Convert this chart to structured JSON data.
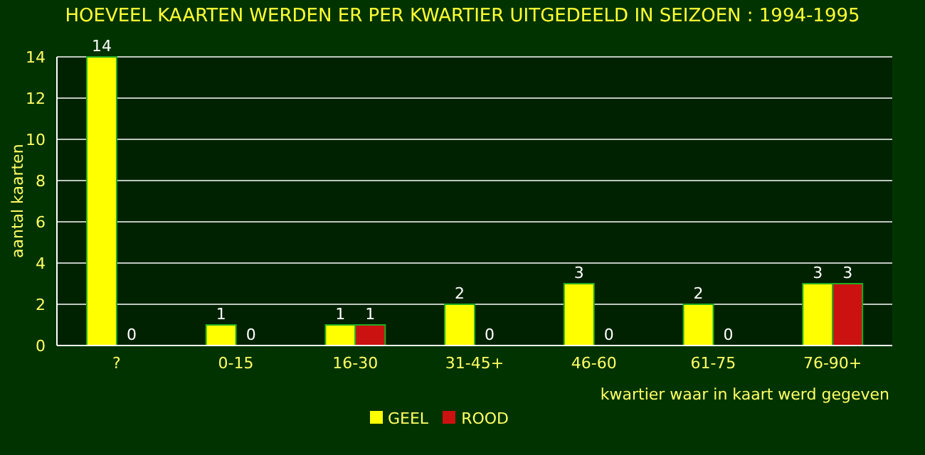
{
  "chart_data": {
    "type": "bar",
    "title": "HOEVEEL KAARTEN WERDEN ER PER KWARTIER UITGEDEELD IN SEIZOEN : 1994-1995",
    "xlabel": "kwartier waar in kaart werd gegeven",
    "ylabel": "aantal kaarten",
    "categories": [
      "?",
      "0-15",
      "16-30",
      "31-45+",
      "46-60",
      "61-75",
      "76-90+"
    ],
    "series": [
      {
        "name": "GEEL",
        "color": "#ffff00",
        "values": [
          14,
          1,
          1,
          2,
          3,
          2,
          3
        ]
      },
      {
        "name": "ROOD",
        "color": "#cc1111",
        "values": [
          0,
          0,
          1,
          0,
          0,
          0,
          3
        ]
      }
    ],
    "ylim": [
      0,
      14
    ],
    "yticks": [
      0,
      2,
      4,
      6,
      8,
      10,
      12,
      14
    ],
    "grid": "y",
    "legend": "bottom",
    "data_labels": true
  }
}
